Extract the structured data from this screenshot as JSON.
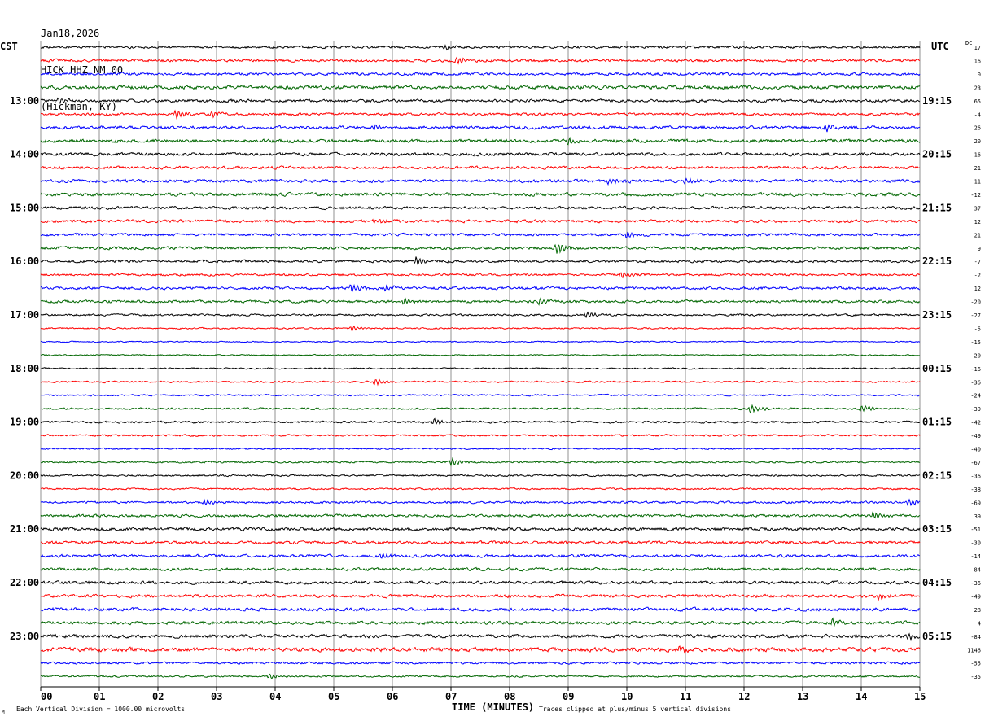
{
  "header": {
    "date": "Jan18,2026",
    "station": "HICK HHZ NM 00",
    "location": "(Hickman, KY)"
  },
  "left_tz": "CST",
  "right_tz": "UTC",
  "dc_label": "DC",
  "footer": {
    "vertical_division": "Each Vertical Division = 1000.00 microvolts",
    "clip_note": "Traces clipped at plus/minus 5 vertical divisions",
    "corner_mark": "M"
  },
  "colors": {
    "black": "#000000",
    "red": "#ff0000",
    "blue": "#0000ff",
    "green": "#006600",
    "grid": "#777777"
  },
  "chart_data": {
    "type": "line",
    "title": "HICK HHZ NM 00",
    "xlabel": "TIME (MINUTES)",
    "x_ticks": [
      "00",
      "01",
      "02",
      "03",
      "04",
      "05",
      "06",
      "07",
      "08",
      "09",
      "10",
      "11",
      "12",
      "13",
      "14",
      "15"
    ],
    "xlim": [
      0,
      15
    ],
    "trace_colors_cycle": [
      "black",
      "red",
      "blue",
      "green"
    ],
    "trace_count": 48,
    "left_hour_labels": [
      {
        "trace": 4,
        "label": "13:00"
      },
      {
        "trace": 8,
        "label": "14:00"
      },
      {
        "trace": 12,
        "label": "15:00"
      },
      {
        "trace": 16,
        "label": "16:00"
      },
      {
        "trace": 20,
        "label": "17:00"
      },
      {
        "trace": 24,
        "label": "18:00"
      },
      {
        "trace": 28,
        "label": "19:00"
      },
      {
        "trace": 32,
        "label": "20:00"
      },
      {
        "trace": 36,
        "label": "21:00"
      },
      {
        "trace": 40,
        "label": "22:00"
      },
      {
        "trace": 44,
        "label": "23:00"
      }
    ],
    "right_hour_labels": [
      {
        "trace": 4,
        "label": "19:15"
      },
      {
        "trace": 8,
        "label": "20:15"
      },
      {
        "trace": 12,
        "label": "21:15"
      },
      {
        "trace": 16,
        "label": "22:15"
      },
      {
        "trace": 20,
        "label": "23:15"
      },
      {
        "trace": 24,
        "label": "00:15"
      },
      {
        "trace": 28,
        "label": "01:15"
      },
      {
        "trace": 32,
        "label": "02:15"
      },
      {
        "trace": 36,
        "label": "03:15"
      },
      {
        "trace": 40,
        "label": "04:15"
      },
      {
        "trace": 44,
        "label": "05:15"
      }
    ],
    "dc_offsets": [
      "17",
      "16",
      "0",
      "23",
      "65",
      "-4",
      "26",
      "20",
      "16",
      "21",
      "11",
      "-12",
      "37",
      "12",
      "21",
      "9",
      "-7",
      "-2",
      "12",
      "-20",
      "-27",
      "-5",
      "-15",
      "-20",
      "-16",
      "-36",
      "-24",
      "-39",
      "-42",
      "-49",
      "-40",
      "-67",
      "-36",
      "-38",
      "-69",
      "39",
      "-51",
      "-30",
      "-14",
      "-84",
      "-36",
      "-49",
      "28",
      "4",
      "-84",
      "1146",
      "-55",
      "-35"
    ],
    "trace_activity": [
      1.0,
      1.1,
      1.1,
      1.5,
      1.2,
      1.0,
      1.3,
      1.4,
      1.3,
      1.2,
      1.3,
      1.4,
      1.2,
      1.2,
      1.1,
      1.2,
      1.0,
      0.9,
      1.1,
      1.1,
      0.8,
      0.6,
      0.5,
      0.5,
      0.6,
      0.7,
      0.7,
      0.8,
      0.9,
      0.8,
      0.6,
      0.7,
      0.7,
      0.7,
      0.9,
      1.1,
      1.3,
      1.2,
      1.2,
      1.2,
      1.3,
      1.3,
      1.4,
      1.3,
      1.4,
      1.7,
      0.9,
      0.7
    ],
    "events": [
      {
        "trace": 0,
        "minute": 6.9,
        "amp": 3
      },
      {
        "trace": 1,
        "minute": 7.1,
        "amp": 5
      },
      {
        "trace": 4,
        "minute": 0.3,
        "amp": 4
      },
      {
        "trace": 5,
        "minute": 2.3,
        "amp": 5
      },
      {
        "trace": 5,
        "minute": 2.9,
        "amp": 4
      },
      {
        "trace": 6,
        "minute": 5.7,
        "amp": 4
      },
      {
        "trace": 6,
        "minute": 13.4,
        "amp": 4
      },
      {
        "trace": 7,
        "minute": 9.0,
        "amp": 4
      },
      {
        "trace": 10,
        "minute": 9.7,
        "amp": 4
      },
      {
        "trace": 10,
        "minute": 11.0,
        "amp": 4
      },
      {
        "trace": 13,
        "minute": 5.7,
        "amp": 3
      },
      {
        "trace": 14,
        "minute": 10.0,
        "amp": 4
      },
      {
        "trace": 15,
        "minute": 8.8,
        "amp": 7
      },
      {
        "trace": 16,
        "minute": 6.4,
        "amp": 5
      },
      {
        "trace": 17,
        "minute": 9.9,
        "amp": 4
      },
      {
        "trace": 18,
        "minute": 5.3,
        "amp": 5
      },
      {
        "trace": 18,
        "minute": 5.9,
        "amp": 4
      },
      {
        "trace": 19,
        "minute": 6.2,
        "amp": 5
      },
      {
        "trace": 19,
        "minute": 8.5,
        "amp": 4
      },
      {
        "trace": 20,
        "minute": 9.3,
        "amp": 4
      },
      {
        "trace": 21,
        "minute": 5.3,
        "amp": 3
      },
      {
        "trace": 25,
        "minute": 5.7,
        "amp": 4
      },
      {
        "trace": 27,
        "minute": 12.1,
        "amp": 5
      },
      {
        "trace": 27,
        "minute": 14.0,
        "amp": 4
      },
      {
        "trace": 28,
        "minute": 6.7,
        "amp": 4
      },
      {
        "trace": 31,
        "minute": 7.0,
        "amp": 5
      },
      {
        "trace": 34,
        "minute": 2.8,
        "amp": 4
      },
      {
        "trace": 34,
        "minute": 14.8,
        "amp": 5
      },
      {
        "trace": 35,
        "minute": 14.2,
        "amp": 4
      },
      {
        "trace": 38,
        "minute": 5.8,
        "amp": 4
      },
      {
        "trace": 41,
        "minute": 14.3,
        "amp": 4
      },
      {
        "trace": 43,
        "minute": 13.5,
        "amp": 4
      },
      {
        "trace": 44,
        "minute": 14.8,
        "amp": 4
      },
      {
        "trace": 45,
        "minute": 10.9,
        "amp": 4
      },
      {
        "trace": 47,
        "minute": 3.9,
        "amp": 3
      }
    ]
  }
}
